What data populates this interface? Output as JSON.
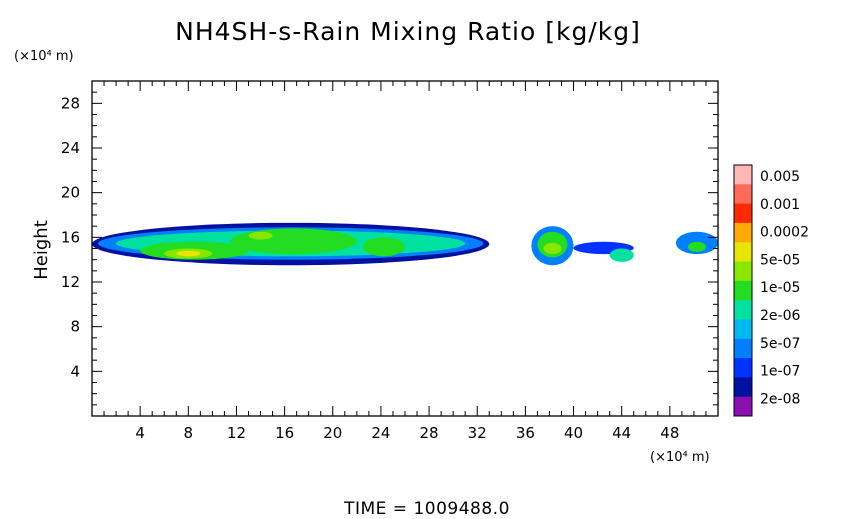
{
  "chart_data": {
    "type": "heatmap",
    "title": "NH4SH-s-Rain Mixing Ratio [kg/kg]",
    "ylabel": "Height",
    "y_unit": "(×10⁴ m)",
    "x_unit": "(×10⁴ m)",
    "xlim": [
      0,
      52
    ],
    "ylim": [
      0,
      30
    ],
    "x_ticks": [
      4,
      8,
      12,
      16,
      20,
      24,
      28,
      32,
      36,
      40,
      44,
      48
    ],
    "y_ticks": [
      4,
      8,
      12,
      16,
      20,
      24,
      28
    ],
    "colorbar": {
      "labels": [
        "0.005",
        "0.001",
        "0.0002",
        "5e-05",
        "1e-05",
        "2e-06",
        "5e-07",
        "1e-07",
        "2e-08"
      ],
      "colors": [
        "#ffb6b6",
        "#ff6a5a",
        "#ff2a00",
        "#ffaa00",
        "#e6e600",
        "#88e600",
        "#22dd22",
        "#00e0a0",
        "#00b8f0",
        "#0080ff",
        "#0033ff",
        "#0010a0",
        "#8a10b0"
      ]
    },
    "time_label": "TIME  =  1009488.0",
    "regions": [
      {
        "x0": 0.0,
        "x1": 33.0,
        "y0": 13.5,
        "y1": 17.3,
        "level": 1
      },
      {
        "x0": 0.5,
        "x1": 32.5,
        "y0": 14.0,
        "y1": 16.9,
        "level": 3
      },
      {
        "x0": 2.0,
        "x1": 31.0,
        "y0": 14.3,
        "y1": 16.6,
        "level": 5
      },
      {
        "x0": 4.0,
        "x1": 13.0,
        "y0": 14.0,
        "y1": 15.6,
        "level": 6
      },
      {
        "x0": 6.0,
        "x1": 10.0,
        "y0": 14.1,
        "y1": 15.0,
        "level": 7
      },
      {
        "x0": 7.0,
        "x1": 9.0,
        "y0": 14.3,
        "y1": 14.8,
        "level": 8
      },
      {
        "x0": 11.5,
        "x1": 22.0,
        "y0": 14.5,
        "y1": 16.8,
        "level": 6
      },
      {
        "x0": 13.0,
        "x1": 15.0,
        "y0": 15.8,
        "y1": 16.5,
        "level": 7
      },
      {
        "x0": 22.5,
        "x1": 26.0,
        "y0": 14.3,
        "y1": 16.0,
        "level": 6
      },
      {
        "x0": 36.5,
        "x1": 40.0,
        "y0": 13.5,
        "y1": 17.0,
        "level": 3
      },
      {
        "x0": 37.0,
        "x1": 39.5,
        "y0": 14.2,
        "y1": 16.5,
        "level": 6
      },
      {
        "x0": 37.5,
        "x1": 39.0,
        "y0": 14.5,
        "y1": 15.5,
        "level": 7
      },
      {
        "x0": 40.0,
        "x1": 45.0,
        "y0": 14.5,
        "y1": 15.6,
        "level": 2
      },
      {
        "x0": 43.0,
        "x1": 45.0,
        "y0": 13.8,
        "y1": 15.0,
        "level": 5
      },
      {
        "x0": 48.5,
        "x1": 52.0,
        "y0": 14.5,
        "y1": 16.5,
        "level": 3
      },
      {
        "x0": 49.5,
        "x1": 51.0,
        "y0": 14.7,
        "y1": 15.6,
        "level": 6
      }
    ]
  }
}
